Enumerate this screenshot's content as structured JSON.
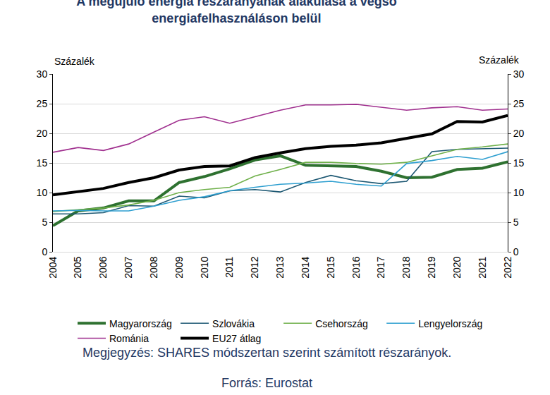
{
  "chart_data": {
    "type": "line",
    "title": "A megújuló energia részarányának alakulása a végső\nenergiafelhasználáson belül",
    "y_label": "Százalék",
    "y2_label": "Százalék",
    "note": "Megjegyzés: SHARES módszertan szerint számított részarányok.",
    "source": "Forrás: Eurostat",
    "categories": [
      "2004",
      "2005",
      "2006",
      "2007",
      "2008",
      "2009",
      "2010",
      "2011",
      "2012",
      "2013",
      "2014",
      "2015",
      "2016",
      "2017",
      "2018",
      "2019",
      "2020",
      "2021",
      "2022"
    ],
    "series": [
      {
        "name": "Magyarország",
        "color": "#2e7130",
        "values": [
          4.4,
          6.9,
          7.4,
          8.6,
          8.6,
          11.7,
          12.7,
          14.0,
          15.5,
          16.2,
          14.6,
          14.5,
          14.4,
          13.6,
          12.5,
          12.6,
          13.9,
          14.1,
          15.2
        ]
      },
      {
        "name": "Szlovákia",
        "color": "#1d5873",
        "values": [
          6.4,
          6.4,
          6.6,
          7.8,
          7.7,
          9.4,
          9.1,
          10.3,
          10.5,
          10.1,
          11.7,
          12.9,
          12.0,
          11.5,
          11.9,
          16.9,
          17.3,
          17.4,
          17.5
        ]
      },
      {
        "name": "Csehország",
        "color": "#6fb04a",
        "values": [
          6.8,
          7.1,
          7.4,
          7.9,
          8.7,
          10.0,
          10.5,
          10.9,
          12.8,
          13.9,
          15.1,
          15.1,
          14.9,
          14.8,
          15.1,
          16.2,
          17.3,
          17.7,
          18.2
        ]
      },
      {
        "name": "Lengyelország",
        "color": "#2e9fd0",
        "values": [
          6.9,
          7.0,
          6.9,
          6.9,
          7.7,
          8.7,
          9.3,
          10.3,
          10.9,
          11.4,
          11.6,
          11.9,
          11.4,
          11.1,
          14.9,
          15.4,
          16.1,
          15.6,
          16.9
        ]
      },
      {
        "name": "Románia",
        "color": "#a0308f",
        "values": [
          16.8,
          17.6,
          17.1,
          18.2,
          20.2,
          22.2,
          22.8,
          21.7,
          22.8,
          23.9,
          24.8,
          24.8,
          24.9,
          24.4,
          23.9,
          24.3,
          24.5,
          23.9,
          24.1
        ]
      },
      {
        "name": "EU27 átlag",
        "color": "#000000",
        "values": [
          9.6,
          10.1,
          10.7,
          11.7,
          12.5,
          13.8,
          14.4,
          14.5,
          15.9,
          16.7,
          17.4,
          17.8,
          18.0,
          18.4,
          19.1,
          19.9,
          22.0,
          21.9,
          23.0
        ]
      }
    ],
    "ylim": [
      0,
      30
    ],
    "yticks": [
      0,
      5,
      10,
      15,
      20,
      25,
      30
    ],
    "y2lim": [
      0,
      30
    ],
    "y2ticks": [
      0,
      5,
      10,
      15,
      20,
      25,
      30
    ],
    "grid": true,
    "legend": "bottom"
  }
}
